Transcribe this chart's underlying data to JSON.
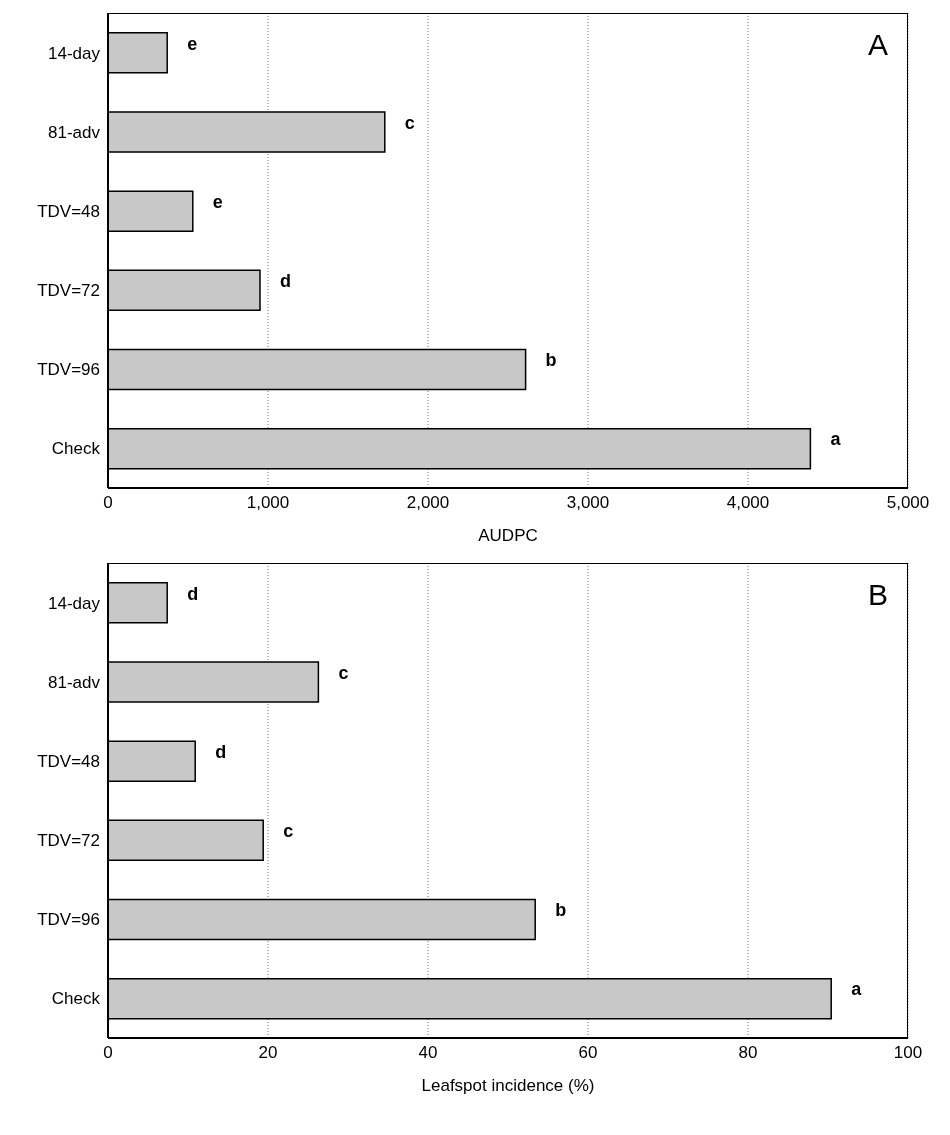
{
  "chart_data": [
    {
      "type": "bar",
      "orientation": "horizontal",
      "categories": [
        "14-day",
        "81-adv",
        "TDV=48",
        "TDV=72",
        "TDV=96",
        "Check"
      ],
      "values": [
        370,
        1730,
        530,
        950,
        2610,
        4390
      ],
      "value_labels": [
        "e",
        "c",
        "e",
        "d",
        "b",
        "a"
      ],
      "color": "#c8c8c8",
      "xlabel": "AUDPC",
      "xlim": [
        0,
        5000
      ],
      "xticks": [
        0,
        {
          "value": 1000,
          "label": "1,000"
        },
        {
          "value": 2000,
          "label": "2,000"
        },
        {
          "value": 3000,
          "label": "3,000"
        },
        {
          "value": 4000,
          "label": "4,000"
        },
        {
          "value": 5000,
          "label": "5,000"
        }
      ],
      "grid": "x",
      "annotations": [
        "A"
      ]
    },
    {
      "type": "bar",
      "orientation": "horizontal",
      "categories": [
        "14-day",
        "81-adv",
        "TDV=48",
        "TDV=72",
        "TDV=96",
        "Check"
      ],
      "values": [
        7.4,
        26.3,
        10.9,
        19.4,
        53.4,
        90.4
      ],
      "value_labels": [
        "d",
        "c",
        "d",
        "c",
        "b",
        "a"
      ],
      "color": "#c8c8c8",
      "xlabel": "Leafspot incidence (%)",
      "xlim": [
        0,
        100
      ],
      "xticks": [
        0,
        20,
        40,
        60,
        80,
        100
      ],
      "grid": "x",
      "annotations": [
        "B"
      ]
    }
  ]
}
